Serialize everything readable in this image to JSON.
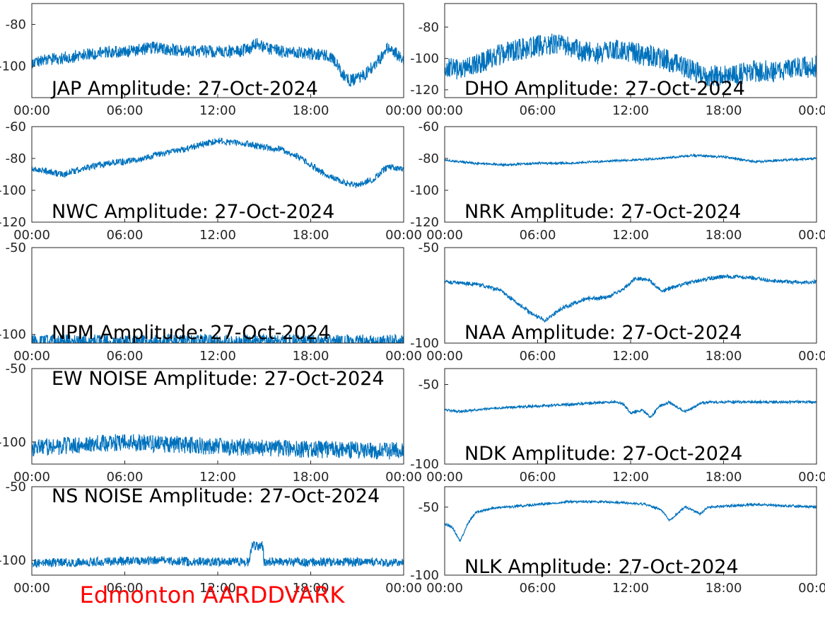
{
  "footer": {
    "label": "Edmonton AARDDVARK",
    "color": "#ff0000"
  },
  "line_color": "#0072bd",
  "chart_data": [
    {
      "type": "line",
      "title": "JAP Amplitude: 27-Oct-2024",
      "x_tick_labels": [
        "00:00",
        "06:00",
        "12:00",
        "18:00",
        "00:00"
      ],
      "xlim": [
        0,
        24
      ],
      "ylim": [
        -115,
        -70
      ],
      "y_ticks": [
        -80,
        -100
      ],
      "y_tick_labels": [
        "-80",
        "-100"
      ],
      "x": [
        0,
        1,
        2,
        3,
        4,
        5,
        6,
        7,
        8,
        9,
        10,
        11,
        12,
        13,
        14,
        14.5,
        15,
        16,
        17,
        18,
        19,
        19.5,
        20,
        20.5,
        21,
        21.5,
        22,
        22.5,
        23,
        23.5,
        24
      ],
      "y": [
        -98,
        -97,
        -96,
        -95,
        -94,
        -93,
        -93,
        -92,
        -91,
        -92,
        -93,
        -93,
        -93,
        -93,
        -92,
        -89,
        -91,
        -93,
        -93,
        -94,
        -95,
        -97,
        -103,
        -107,
        -106,
        -104,
        -100,
        -96,
        -91,
        -94,
        -97
      ],
      "noise": 3
    },
    {
      "type": "line",
      "title": "DHO Amplitude: 27-Oct-2024",
      "x_tick_labels": [
        "00:00",
        "06:00",
        "12:00",
        "18:00",
        "00:00"
      ],
      "xlim": [
        0,
        24
      ],
      "ylim": [
        -125,
        -65
      ],
      "y_ticks": [
        -80,
        -100,
        -120
      ],
      "y_tick_labels": [
        "-80",
        "-100",
        "-120"
      ],
      "x": [
        0,
        1,
        2,
        3,
        4,
        5,
        6,
        7,
        8,
        9,
        10,
        11,
        12,
        13,
        14,
        15,
        16,
        17,
        18,
        19,
        20,
        21,
        22,
        23,
        24
      ],
      "y": [
        -104,
        -108,
        -104,
        -100,
        -96,
        -94,
        -92,
        -91,
        -93,
        -96,
        -97,
        -95,
        -96,
        -98,
        -100,
        -104,
        -108,
        -111,
        -111,
        -110,
        -108,
        -108,
        -107,
        -106,
        -105
      ],
      "noise": 7
    },
    {
      "type": "line",
      "title": "NWC Amplitude: 27-Oct-2024",
      "x_tick_labels": [
        "00:00",
        "06:00",
        "12:00",
        "18:00",
        "00:00"
      ],
      "xlim": [
        0,
        24
      ],
      "ylim": [
        -120,
        -60
      ],
      "y_ticks": [
        -60,
        -80,
        -100,
        -120
      ],
      "y_tick_labels": [
        "-60",
        "-80",
        "-100",
        "-120"
      ],
      "x": [
        0,
        1,
        2,
        3,
        4,
        5,
        6,
        7,
        8,
        9,
        10,
        11,
        12,
        13,
        14,
        15,
        16,
        17,
        18,
        19,
        20,
        21,
        22,
        23,
        24
      ],
      "y": [
        -86,
        -88,
        -90,
        -87,
        -85,
        -83,
        -82,
        -80,
        -78,
        -76,
        -74,
        -71,
        -69,
        -70,
        -71,
        -73,
        -74,
        -78,
        -84,
        -90,
        -95,
        -97,
        -93,
        -85,
        -87
      ],
      "noise": 2
    },
    {
      "type": "line",
      "title": "NRK Amplitude: 27-Oct-2024",
      "x_tick_labels": [
        "00:00",
        "06:00",
        "12:00",
        "18:00",
        "00:00"
      ],
      "xlim": [
        0,
        24
      ],
      "ylim": [
        -120,
        -60
      ],
      "y_ticks": [
        -60,
        -80,
        -100,
        -120
      ],
      "y_tick_labels": [
        "-60",
        "-80",
        "-100",
        "-120"
      ],
      "x": [
        0,
        2,
        4,
        6,
        8,
        10,
        12,
        14,
        16,
        18,
        20,
        22,
        24
      ],
      "y": [
        -81,
        -83,
        -84,
        -83,
        -83,
        -82,
        -81,
        -80,
        -78,
        -79,
        -82,
        -81,
        -80
      ],
      "noise": 0.6
    },
    {
      "type": "line",
      "title": "NPM Amplitude: 27-Oct-2024",
      "x_tick_labels": [
        "00:00",
        "06:00",
        "12:00",
        "18:00",
        "00:00"
      ],
      "xlim": [
        0,
        24
      ],
      "ylim": [
        -105,
        -50
      ],
      "y_ticks": [
        -50,
        -100
      ],
      "y_tick_labels": [
        "-50",
        "-100"
      ],
      "x": [
        0,
        6,
        12,
        18,
        24
      ],
      "y": [
        -104,
        -104,
        -104,
        -104,
        -104
      ],
      "noise": 4
    },
    {
      "type": "line",
      "title": "NAA Amplitude: 27-Oct-2024",
      "x_tick_labels": [
        "00:00",
        "06:00",
        "12:00",
        "18:00",
        "00:00"
      ],
      "xlim": [
        0,
        24
      ],
      "ylim": [
        -100,
        -50
      ],
      "y_ticks": [
        -50,
        -100
      ],
      "y_tick_labels": [
        "-50",
        "-100"
      ],
      "x": [
        0,
        2,
        3.5,
        4.5,
        5.5,
        6.5,
        7.5,
        9,
        10.5,
        11.5,
        12.3,
        13.2,
        14,
        15,
        16.5,
        18,
        20,
        22,
        24
      ],
      "y": [
        -68,
        -69,
        -72,
        -78,
        -84,
        -88,
        -82,
        -77,
        -76,
        -72,
        -66,
        -67,
        -73,
        -70,
        -67,
        -65,
        -66,
        -68,
        -68
      ],
      "noise": 1
    },
    {
      "type": "line",
      "title": "EW NOISE Amplitude: 27-Oct-2024",
      "x_tick_labels": [
        "00:00",
        "06:00",
        "12:00",
        "18:00",
        "00:00"
      ],
      "xlim": [
        0,
        24
      ],
      "ylim": [
        -115,
        -50
      ],
      "y_ticks": [
        -50,
        -100
      ],
      "y_tick_labels": [
        "-50",
        "-100"
      ],
      "x": [
        0,
        6,
        12,
        18,
        24
      ],
      "y": [
        -104,
        -100,
        -103,
        -105,
        -106
      ],
      "noise": 6
    },
    {
      "type": "line",
      "title": "NDK Amplitude: 27-Oct-2024",
      "x_tick_labels": [
        "00:00",
        "06:00",
        "12:00",
        "18:00",
        "00:00"
      ],
      "xlim": [
        0,
        24
      ],
      "ylim": [
        -100,
        -40
      ],
      "y_ticks": [
        -50,
        -100
      ],
      "y_tick_labels": [
        "-50",
        "-100"
      ],
      "x": [
        0,
        1,
        3,
        5,
        7,
        9,
        11,
        11.5,
        12,
        12.8,
        13.3,
        13.8,
        14.5,
        15.5,
        16.5,
        17,
        18,
        20,
        22,
        24
      ],
      "y": [
        -66,
        -67,
        -65,
        -64,
        -63,
        -62,
        -61,
        -62,
        -68,
        -66,
        -71,
        -64,
        -61,
        -67,
        -62,
        -61,
        -61,
        -61,
        -61,
        -61
      ],
      "noise": 0.8
    },
    {
      "type": "line",
      "title": "NS NOISE Amplitude: 27-Oct-2024",
      "x_tick_labels": [
        "00:00",
        "06:00",
        "12:00",
        "18:00",
        "00:00"
      ],
      "xlim": [
        0,
        24
      ],
      "ylim": [
        -110,
        -50
      ],
      "y_ticks": [
        -50,
        -100
      ],
      "y_tick_labels": [
        "-50",
        "-100"
      ],
      "x": [
        0,
        4,
        8,
        12,
        14,
        14.2,
        14.9,
        15,
        18,
        22,
        24
      ],
      "y": [
        -102,
        -101,
        -100,
        -101,
        -101,
        -90,
        -90,
        -101,
        -101,
        -101,
        -102
      ],
      "noise": 3
    },
    {
      "type": "line",
      "title": "NLK Amplitude: 27-Oct-2024",
      "x_tick_labels": [
        "00:00",
        "06:00",
        "12:00",
        "18:00",
        "00:00"
      ],
      "xlim": [
        0,
        24
      ],
      "ylim": [
        -100,
        -35
      ],
      "y_ticks": [
        -50,
        -100
      ],
      "y_tick_labels": [
        "-50",
        "-100"
      ],
      "x": [
        0,
        0.5,
        1,
        1.5,
        2,
        3,
        5,
        8,
        10,
        12,
        13,
        14,
        14.5,
        15.5,
        16.5,
        17,
        20,
        24
      ],
      "y": [
        -62,
        -65,
        -75,
        -62,
        -54,
        -51,
        -49,
        -46,
        -46,
        -47,
        -48,
        -52,
        -60,
        -50,
        -55,
        -50,
        -48,
        -50
      ],
      "noise": 0.8
    }
  ]
}
